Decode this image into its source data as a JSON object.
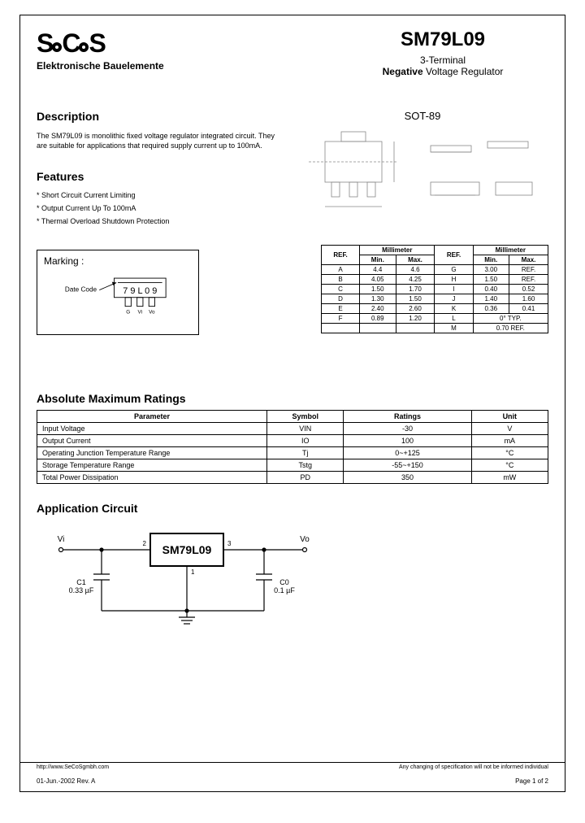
{
  "logo": {
    "name": "SeCoS",
    "subtitle": "Elektronische Bauelemente"
  },
  "title": {
    "part": "SM79L09",
    "line1": "3-Terminal",
    "line2_bold": "Negative",
    "line2_rest": " Voltage Regulator"
  },
  "description": {
    "heading": "Description",
    "text": "The SM79L09 is monolithic fixed voltage regulator integrated circuit. They are suitable for applications that required supply current up to 100mA."
  },
  "features": {
    "heading": "Features",
    "items": [
      "* Short Circuit Current Limiting",
      "* Output Current Up To 100mA",
      "* Thermal Overload Shutdown Protection"
    ]
  },
  "package": {
    "label": "SOT-89"
  },
  "marking": {
    "heading": "Marking :",
    "code": "7 9 L 0 9",
    "datecode_label": "Date Code",
    "pins": [
      "G",
      "Vi",
      "Vo"
    ]
  },
  "dimensions": {
    "header": [
      "REF.",
      "Millimeter",
      "",
      "REF.",
      "Millimeter",
      ""
    ],
    "subheader": [
      "",
      "Min.",
      "Max.",
      "",
      "Min.",
      "Max."
    ],
    "rows": [
      [
        "A",
        "4.4",
        "4.6",
        "G",
        "3.00",
        "REF."
      ],
      [
        "B",
        "4.05",
        "4.25",
        "H",
        "1.50",
        "REF."
      ],
      [
        "C",
        "1.50",
        "1.70",
        "I",
        "0.40",
        "0.52"
      ],
      [
        "D",
        "1.30",
        "1.50",
        "J",
        "1.40",
        "1.60"
      ],
      [
        "E",
        "2.40",
        "2.60",
        "K",
        "0.36",
        "0.41"
      ],
      [
        "F",
        "0.89",
        "1.20",
        "L",
        "0° TYP.",
        ""
      ],
      [
        "",
        "",
        "",
        "M",
        "0.70 REF.",
        ""
      ]
    ]
  },
  "absmax": {
    "heading": "Absolute Maximum Ratings",
    "columns": [
      "Parameter",
      "Symbol",
      "Ratings",
      "Unit"
    ],
    "rows": [
      [
        "Input Voltage",
        "VIN",
        "-30",
        "V"
      ],
      [
        "Output Current",
        "IO",
        "100",
        "mA"
      ],
      [
        "Operating Junction Temperature Range",
        "Tj",
        "0~+125",
        "°C"
      ],
      [
        "Storage Temperature Range",
        "Tstg",
        "-55~+150",
        "°C"
      ],
      [
        "Total Power Dissipation",
        "PD",
        "350",
        "mW"
      ]
    ]
  },
  "appcircuit": {
    "heading": "Application Circuit",
    "chip": "SM79L09",
    "vi": "Vi",
    "vo": "Vo",
    "c1_name": "C1",
    "c1_val": "0.33 µF",
    "c0_name": "C0",
    "c0_val": "0.1 µF",
    "pin1": "1",
    "pin2": "2",
    "pin3": "3"
  },
  "footer": {
    "url": "http://www.SeCoSgmbh.com",
    "disclaimer": "Any changing of specification will not be informed individual",
    "date": "01-Jun.-2002  Rev. A",
    "page": "Page 1 of 2"
  }
}
